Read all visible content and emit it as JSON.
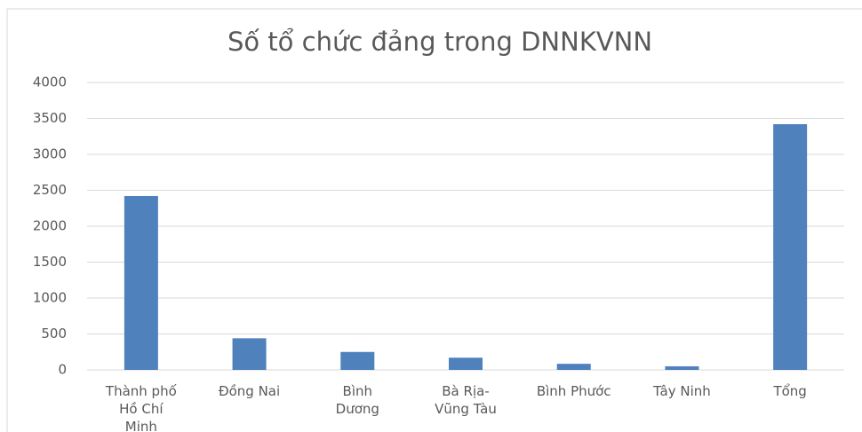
{
  "chart_data": {
    "type": "bar",
    "title": "Số tổ chức đảng trong DNNKVNN",
    "categories": [
      "Thành phố Hồ Chí Minh",
      "Đồng Nai",
      "Bình Dương",
      "Bà Rịa-Vũng Tàu",
      "Bình Phước",
      "Tây Ninh",
      "Tổng"
    ],
    "values": [
      2420,
      440,
      250,
      170,
      85,
      50,
      3420
    ],
    "color": "#4f81bd",
    "ylim": [
      0,
      4000
    ],
    "yticks": [
      0,
      500,
      1000,
      1500,
      2000,
      2500,
      3000,
      3500,
      4000
    ],
    "grid": true
  }
}
